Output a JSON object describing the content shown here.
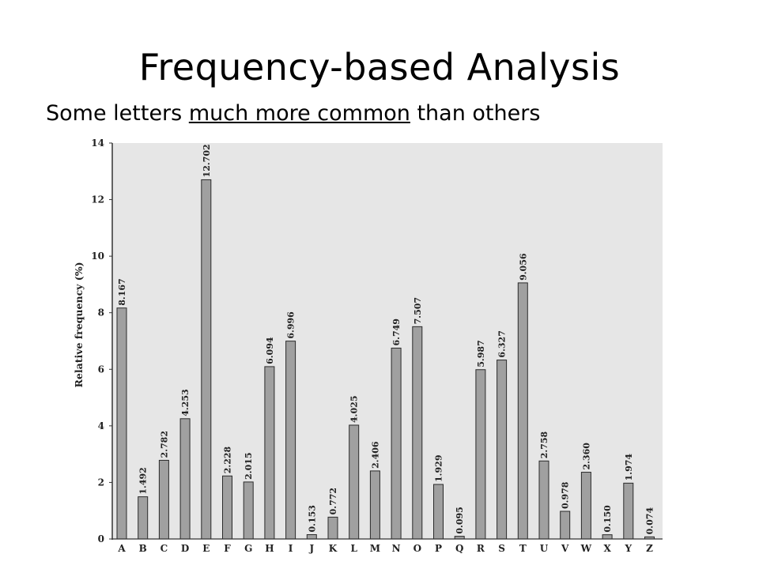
{
  "title": "Frequency-based Analysis",
  "subtitle": {
    "before": "Some letters ",
    "underlined": "much more common",
    "after": " than others"
  },
  "chart_data": {
    "type": "bar",
    "ylabel": "Relative frequency (%)",
    "ylim": [
      0,
      14
    ],
    "yticks": [
      0,
      2,
      4,
      6,
      8,
      10,
      12,
      14
    ],
    "grid": false,
    "background_color": "#e6e6e6",
    "bar_color": "#a0a0a0",
    "categories": [
      "A",
      "B",
      "C",
      "D",
      "E",
      "F",
      "G",
      "H",
      "I",
      "J",
      "K",
      "L",
      "M",
      "N",
      "O",
      "P",
      "Q",
      "R",
      "S",
      "T",
      "U",
      "V",
      "W",
      "X",
      "Y",
      "Z"
    ],
    "values": [
      8.167,
      1.492,
      2.782,
      4.253,
      12.702,
      2.228,
      2.015,
      6.094,
      6.996,
      0.153,
      0.772,
      4.025,
      2.406,
      6.749,
      7.507,
      1.929,
      0.095,
      5.987,
      6.327,
      9.056,
      2.758,
      0.978,
      2.36,
      0.15,
      1.974,
      0.074
    ],
    "value_labels": [
      "8.167",
      "1.492",
      "2.782",
      "4.253",
      "12.702",
      "2.228",
      "2.015",
      "6.094",
      "6.996",
      "0.153",
      "0.772",
      "4.025",
      "2.406",
      "6.749",
      "7.507",
      "1.929",
      "0.095",
      "5.987",
      "6.327",
      "9.056",
      "2.758",
      "0.978",
      "2.360",
      "0.150",
      "1.974",
      "0.074"
    ]
  }
}
